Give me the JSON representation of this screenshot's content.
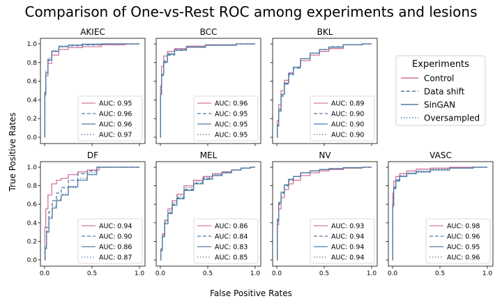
{
  "figure": {
    "title": "Comparison of One-vs-Rest ROC among experiments and lesions",
    "xlabel": "False Positive Rates",
    "ylabel": "True Positive Rates"
  },
  "legend": {
    "title": "Experiments",
    "entries": [
      {
        "name": "Control",
        "color": "#d4739a",
        "dash": "solid"
      },
      {
        "name": "Data shift",
        "color": "#4f7aa3",
        "dash": "dashed"
      },
      {
        "name": "SinGAN",
        "color": "#4f7aa3",
        "dash": "solid"
      },
      {
        "name": "Oversampled",
        "color": "#4f7aa3",
        "dash": "dotted"
      }
    ]
  },
  "chart_data": [
    {
      "type": "line",
      "title": "AKIEC",
      "xlim": [
        0,
        1
      ],
      "ylim": [
        0,
        1
      ],
      "xticks": [
        "0.0",
        "0.5",
        "1.0"
      ],
      "yticks": [
        "0.0",
        "0.2",
        "0.4",
        "0.6",
        "0.8",
        "1.0"
      ],
      "series": [
        {
          "name": "AUC: 0.95",
          "auc": 0.95,
          "x": [
            0,
            0.005,
            0.02,
            0.05,
            0.1,
            0.2,
            0.3,
            0.5,
            0.7,
            1.0
          ],
          "y": [
            0,
            0.45,
            0.66,
            0.79,
            0.88,
            0.94,
            0.96,
            0.97,
            0.99,
            1.0
          ]
        },
        {
          "name": "AUC: 0.96",
          "auc": 0.96,
          "x": [
            0,
            0.005,
            0.02,
            0.05,
            0.1,
            0.2,
            0.3,
            0.5,
            0.7,
            1.0
          ],
          "y": [
            0,
            0.47,
            0.68,
            0.82,
            0.92,
            0.97,
            0.98,
            0.99,
            1.0,
            1.0
          ]
        },
        {
          "name": "AUC: 0.96",
          "auc": 0.96,
          "x": [
            0,
            0.005,
            0.02,
            0.05,
            0.1,
            0.2,
            0.3,
            0.5,
            0.7,
            1.0
          ],
          "y": [
            0,
            0.48,
            0.69,
            0.83,
            0.92,
            0.97,
            0.985,
            0.995,
            1.0,
            1.0
          ]
        },
        {
          "name": "AUC: 0.97",
          "auc": 0.97,
          "x": [
            0,
            0.005,
            0.02,
            0.05,
            0.1,
            0.2,
            0.3,
            0.5,
            0.7,
            1.0
          ],
          "y": [
            0,
            0.5,
            0.71,
            0.85,
            0.93,
            0.98,
            0.99,
            1.0,
            1.0,
            1.0
          ]
        }
      ]
    },
    {
      "type": "line",
      "title": "BCC",
      "xlim": [
        0,
        1
      ],
      "ylim": [
        0,
        1
      ],
      "xticks": [
        "0.0",
        "0.5",
        "1.0"
      ],
      "yticks": [
        "0.0",
        "0.2",
        "0.4",
        "0.6",
        "0.8",
        "1.0"
      ],
      "series": [
        {
          "name": "AUC: 0.96",
          "auc": 0.96,
          "x": [
            0,
            0.005,
            0.02,
            0.05,
            0.1,
            0.2,
            0.35,
            0.6,
            1.0
          ],
          "y": [
            0,
            0.55,
            0.76,
            0.87,
            0.92,
            0.95,
            0.975,
            0.99,
            1.0
          ]
        },
        {
          "name": "AUC: 0.95",
          "auc": 0.95,
          "x": [
            0,
            0.005,
            0.02,
            0.05,
            0.1,
            0.2,
            0.35,
            0.6,
            1.0
          ],
          "y": [
            0,
            0.45,
            0.66,
            0.8,
            0.88,
            0.93,
            0.965,
            0.985,
            1.0
          ]
        },
        {
          "name": "AUC: 0.95",
          "auc": 0.95,
          "x": [
            0,
            0.005,
            0.02,
            0.05,
            0.1,
            0.2,
            0.35,
            0.6,
            1.0
          ],
          "y": [
            0,
            0.46,
            0.67,
            0.81,
            0.89,
            0.935,
            0.965,
            0.985,
            1.0
          ]
        },
        {
          "name": "AUC: 0.95",
          "auc": 0.95,
          "x": [
            0,
            0.005,
            0.02,
            0.05,
            0.1,
            0.2,
            0.35,
            0.6,
            1.0
          ],
          "y": [
            0,
            0.47,
            0.68,
            0.82,
            0.9,
            0.94,
            0.97,
            0.99,
            1.0
          ]
        }
      ]
    },
    {
      "type": "line",
      "title": "BKL",
      "xlim": [
        0,
        1
      ],
      "ylim": [
        0,
        1
      ],
      "xticks": [
        "0.0",
        "0.5",
        "1.0"
      ],
      "yticks": [
        "0.0",
        "0.2",
        "0.4",
        "0.6",
        "0.8",
        "1.0"
      ],
      "series": [
        {
          "name": "AUC: 0.89",
          "auc": 0.89,
          "x": [
            0,
            0.01,
            0.03,
            0.06,
            0.1,
            0.15,
            0.2,
            0.3,
            0.4,
            0.5,
            0.6,
            0.8,
            1.0
          ],
          "y": [
            0,
            0.18,
            0.35,
            0.5,
            0.61,
            0.69,
            0.75,
            0.82,
            0.88,
            0.92,
            0.95,
            0.99,
            1.0
          ]
        },
        {
          "name": "AUC: 0.90",
          "auc": 0.9,
          "x": [
            0,
            0.01,
            0.03,
            0.06,
            0.1,
            0.15,
            0.2,
            0.3,
            0.4,
            0.5,
            0.6,
            0.8,
            1.0
          ],
          "y": [
            0,
            0.12,
            0.28,
            0.44,
            0.57,
            0.67,
            0.74,
            0.84,
            0.9,
            0.94,
            0.97,
            0.99,
            1.0
          ]
        },
        {
          "name": "AUC: 0.90",
          "auc": 0.9,
          "x": [
            0,
            0.01,
            0.03,
            0.06,
            0.1,
            0.15,
            0.2,
            0.3,
            0.4,
            0.5,
            0.6,
            0.8,
            1.0
          ],
          "y": [
            0,
            0.13,
            0.3,
            0.46,
            0.58,
            0.68,
            0.75,
            0.84,
            0.9,
            0.94,
            0.965,
            0.99,
            1.0
          ]
        },
        {
          "name": "AUC: 0.90",
          "auc": 0.9,
          "x": [
            0,
            0.01,
            0.03,
            0.06,
            0.1,
            0.15,
            0.2,
            0.3,
            0.4,
            0.5,
            0.6,
            0.8,
            1.0
          ],
          "y": [
            0,
            0.13,
            0.29,
            0.45,
            0.58,
            0.68,
            0.75,
            0.84,
            0.9,
            0.94,
            0.965,
            0.99,
            1.0
          ]
        }
      ]
    },
    {
      "type": "line",
      "title": "DF",
      "xlim": [
        0,
        1
      ],
      "ylim": [
        0,
        1
      ],
      "xticks": [
        "0.0",
        "0.5",
        "1.0"
      ],
      "yticks": [
        "0.0",
        "0.2",
        "0.4",
        "0.6",
        "0.8",
        "1.0"
      ],
      "series": [
        {
          "name": "AUC: 0.94",
          "auc": 0.94,
          "x": [
            0,
            0.005,
            0.02,
            0.05,
            0.1,
            0.15,
            0.2,
            0.3,
            0.4,
            0.5,
            0.65,
            1.0
          ],
          "y": [
            0,
            0.35,
            0.55,
            0.7,
            0.82,
            0.86,
            0.88,
            0.92,
            0.95,
            0.97,
            1.0,
            1.0
          ]
        },
        {
          "name": "AUC: 0.90",
          "auc": 0.9,
          "x": [
            0,
            0.01,
            0.03,
            0.06,
            0.1,
            0.15,
            0.2,
            0.3,
            0.4,
            0.5,
            0.6,
            1.0
          ],
          "y": [
            0,
            0.15,
            0.35,
            0.52,
            0.64,
            0.72,
            0.78,
            0.86,
            0.93,
            0.96,
            1.0,
            1.0
          ]
        },
        {
          "name": "AUC: 0.86",
          "auc": 0.86,
          "x": [
            0,
            0.01,
            0.03,
            0.06,
            0.1,
            0.15,
            0.2,
            0.3,
            0.4,
            0.5,
            0.6,
            1.0
          ],
          "y": [
            0,
            0.12,
            0.3,
            0.45,
            0.56,
            0.64,
            0.7,
            0.79,
            0.86,
            0.92,
            1.0,
            1.0
          ]
        },
        {
          "name": "AUC: 0.87",
          "auc": 0.87,
          "x": [
            0,
            0.01,
            0.03,
            0.06,
            0.1,
            0.15,
            0.2,
            0.3,
            0.4,
            0.5,
            0.6,
            1.0
          ],
          "y": [
            0,
            0.13,
            0.31,
            0.47,
            0.58,
            0.65,
            0.71,
            0.78,
            0.88,
            0.94,
            1.0,
            1.0
          ]
        }
      ]
    },
    {
      "type": "line",
      "title": "MEL",
      "xlim": [
        0,
        1
      ],
      "ylim": [
        0,
        1
      ],
      "xticks": [
        "0.0",
        "0.5",
        "1.0"
      ],
      "yticks": [
        "0.0",
        "0.2",
        "0.4",
        "0.6",
        "0.8",
        "1.0"
      ],
      "series": [
        {
          "name": "AUC: 0.86",
          "auc": 0.86,
          "x": [
            0,
            0.01,
            0.03,
            0.06,
            0.1,
            0.15,
            0.2,
            0.3,
            0.4,
            0.5,
            0.6,
            0.7,
            0.8,
            0.9,
            1.0
          ],
          "y": [
            0,
            0.12,
            0.28,
            0.43,
            0.55,
            0.64,
            0.71,
            0.8,
            0.86,
            0.9,
            0.93,
            0.95,
            0.97,
            0.99,
            1.0
          ]
        },
        {
          "name": "AUC: 0.84",
          "auc": 0.84,
          "x": [
            0,
            0.01,
            0.03,
            0.06,
            0.1,
            0.15,
            0.2,
            0.3,
            0.4,
            0.5,
            0.6,
            0.7,
            0.8,
            0.9,
            1.0
          ],
          "y": [
            0,
            0.11,
            0.26,
            0.4,
            0.51,
            0.6,
            0.67,
            0.76,
            0.83,
            0.88,
            0.91,
            0.94,
            0.97,
            0.99,
            1.0
          ]
        },
        {
          "name": "AUC: 0.83",
          "auc": 0.83,
          "x": [
            0,
            0.01,
            0.03,
            0.06,
            0.1,
            0.15,
            0.2,
            0.3,
            0.4,
            0.5,
            0.6,
            0.7,
            0.8,
            0.9,
            1.0
          ],
          "y": [
            0,
            0.1,
            0.25,
            0.39,
            0.5,
            0.59,
            0.66,
            0.75,
            0.82,
            0.87,
            0.91,
            0.94,
            0.97,
            0.99,
            1.0
          ]
        },
        {
          "name": "AUC: 0.85",
          "auc": 0.85,
          "x": [
            0,
            0.01,
            0.03,
            0.06,
            0.1,
            0.15,
            0.2,
            0.3,
            0.4,
            0.5,
            0.6,
            0.7,
            0.8,
            0.9,
            1.0
          ],
          "y": [
            0,
            0.11,
            0.27,
            0.42,
            0.53,
            0.62,
            0.69,
            0.78,
            0.85,
            0.89,
            0.92,
            0.95,
            0.97,
            0.99,
            1.0
          ]
        }
      ]
    },
    {
      "type": "line",
      "title": "NV",
      "xlim": [
        0,
        1
      ],
      "ylim": [
        0,
        1
      ],
      "xticks": [
        "0.0",
        "0.5",
        "1.0"
      ],
      "yticks": [
        "0.0",
        "0.2",
        "0.4",
        "0.6",
        "0.8",
        "1.0"
      ],
      "series": [
        {
          "name": "AUC: 0.93",
          "auc": 0.93,
          "x": [
            0,
            0.01,
            0.03,
            0.06,
            0.1,
            0.15,
            0.2,
            0.3,
            0.4,
            0.5,
            0.6,
            0.8,
            1.0
          ],
          "y": [
            0,
            0.38,
            0.55,
            0.67,
            0.76,
            0.82,
            0.86,
            0.91,
            0.94,
            0.96,
            0.975,
            0.99,
            1.0
          ]
        },
        {
          "name": "AUC: 0.94",
          "auc": 0.94,
          "x": [
            0,
            0.01,
            0.03,
            0.06,
            0.1,
            0.15,
            0.2,
            0.3,
            0.4,
            0.5,
            0.6,
            0.8,
            1.0
          ],
          "y": [
            0,
            0.42,
            0.6,
            0.72,
            0.8,
            0.86,
            0.9,
            0.94,
            0.96,
            0.975,
            0.985,
            0.995,
            1.0
          ]
        },
        {
          "name": "AUC: 0.94",
          "auc": 0.94,
          "x": [
            0,
            0.01,
            0.03,
            0.06,
            0.1,
            0.15,
            0.2,
            0.3,
            0.4,
            0.5,
            0.6,
            0.8,
            1.0
          ],
          "y": [
            0,
            0.44,
            0.62,
            0.73,
            0.81,
            0.87,
            0.9,
            0.94,
            0.96,
            0.975,
            0.985,
            0.995,
            1.0
          ]
        },
        {
          "name": "AUC: 0.94",
          "auc": 0.94,
          "x": [
            0,
            0.01,
            0.03,
            0.06,
            0.1,
            0.15,
            0.2,
            0.3,
            0.4,
            0.5,
            0.6,
            0.8,
            1.0
          ],
          "y": [
            0,
            0.43,
            0.61,
            0.72,
            0.81,
            0.86,
            0.9,
            0.94,
            0.96,
            0.975,
            0.985,
            0.995,
            1.0
          ]
        }
      ]
    },
    {
      "type": "line",
      "title": "VASC",
      "xlim": [
        0,
        1
      ],
      "ylim": [
        0,
        1
      ],
      "xticks": [
        "0.0",
        "0.5",
        "1.0"
      ],
      "yticks": [
        "0.0",
        "0.2",
        "0.4",
        "0.6",
        "0.8",
        "1.0"
      ],
      "series": [
        {
          "name": "AUC: 0.98",
          "auc": 0.98,
          "x": [
            0,
            0.005,
            0.02,
            0.05,
            0.1,
            0.2,
            0.3,
            0.5,
            0.7,
            1.0
          ],
          "y": [
            0,
            0.72,
            0.85,
            0.9,
            0.93,
            0.96,
            0.98,
            0.99,
            1.0,
            1.0
          ]
        },
        {
          "name": "AUC: 0.96",
          "auc": 0.96,
          "x": [
            0,
            0.005,
            0.02,
            0.05,
            0.1,
            0.2,
            0.3,
            0.5,
            0.7,
            1.0
          ],
          "y": [
            0,
            0.6,
            0.78,
            0.86,
            0.9,
            0.93,
            0.95,
            0.97,
            0.99,
            1.0
          ]
        },
        {
          "name": "AUC: 0.95",
          "auc": 0.95,
          "x": [
            0,
            0.005,
            0.02,
            0.05,
            0.1,
            0.2,
            0.3,
            0.5,
            0.7,
            1.0
          ],
          "y": [
            0,
            0.58,
            0.77,
            0.85,
            0.9,
            0.93,
            0.95,
            0.97,
            0.99,
            1.0
          ]
        },
        {
          "name": "AUC: 0.96",
          "auc": 0.96,
          "x": [
            0,
            0.005,
            0.02,
            0.05,
            0.1,
            0.2,
            0.3,
            0.5,
            0.7,
            1.0
          ],
          "y": [
            0,
            0.62,
            0.79,
            0.87,
            0.91,
            0.94,
            0.96,
            0.98,
            0.99,
            1.0
          ]
        }
      ]
    }
  ]
}
